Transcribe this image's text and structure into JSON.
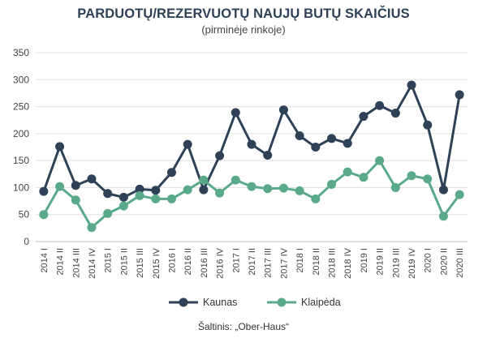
{
  "header": {
    "title": "PARDUOTŲ/REZERVUOTŲ NAUJŲ BUTŲ SKAIČIUS",
    "subtitle": "(pirminėje rinkoje)"
  },
  "footer": {
    "source": "Šaltinis: „Ober-Haus“"
  },
  "chart_data": {
    "type": "line",
    "title": "PARDUOTŲ/REZERVUOTŲ NAUJŲ BUTŲ SKAIČIUS",
    "subtitle": "(pirminėje rinkoje)",
    "xlabel": "",
    "ylabel": "",
    "ylim": [
      0,
      350
    ],
    "yticks": [
      0,
      50,
      100,
      150,
      200,
      250,
      300,
      350
    ],
    "grid": true,
    "legend": "bottom",
    "categories": [
      "2014 I",
      "2014 II",
      "2014 III",
      "2014 IV",
      "2015 I",
      "2015 II",
      "2015 III",
      "2015 IV",
      "2016 I",
      "2016 II",
      "2016 III",
      "2016 IV",
      "2017 I",
      "2017 II",
      "2017 III",
      "2017 IV",
      "2018 I",
      "2018 II",
      "2018 III",
      "2018 IV",
      "2019 I",
      "2019 II",
      "2019 III",
      "2019 IV",
      "2020 I",
      "2020 II",
      "2020 III"
    ],
    "series": [
      {
        "name": "Kaunas",
        "color": "#2e4157",
        "values": [
          93,
          176,
          104,
          116,
          89,
          82,
          97,
          95,
          128,
          180,
          96,
          159,
          239,
          180,
          160,
          244,
          196,
          175,
          191,
          182,
          232,
          252,
          238,
          290,
          216,
          96,
          272
        ]
      },
      {
        "name": "Klaipėda",
        "color": "#5aa98a",
        "values": [
          50,
          102,
          77,
          26,
          52,
          66,
          85,
          79,
          79,
          96,
          114,
          90,
          114,
          102,
          98,
          99,
          94,
          79,
          106,
          129,
          119,
          150,
          100,
          122,
          116,
          47,
          87
        ]
      }
    ]
  }
}
